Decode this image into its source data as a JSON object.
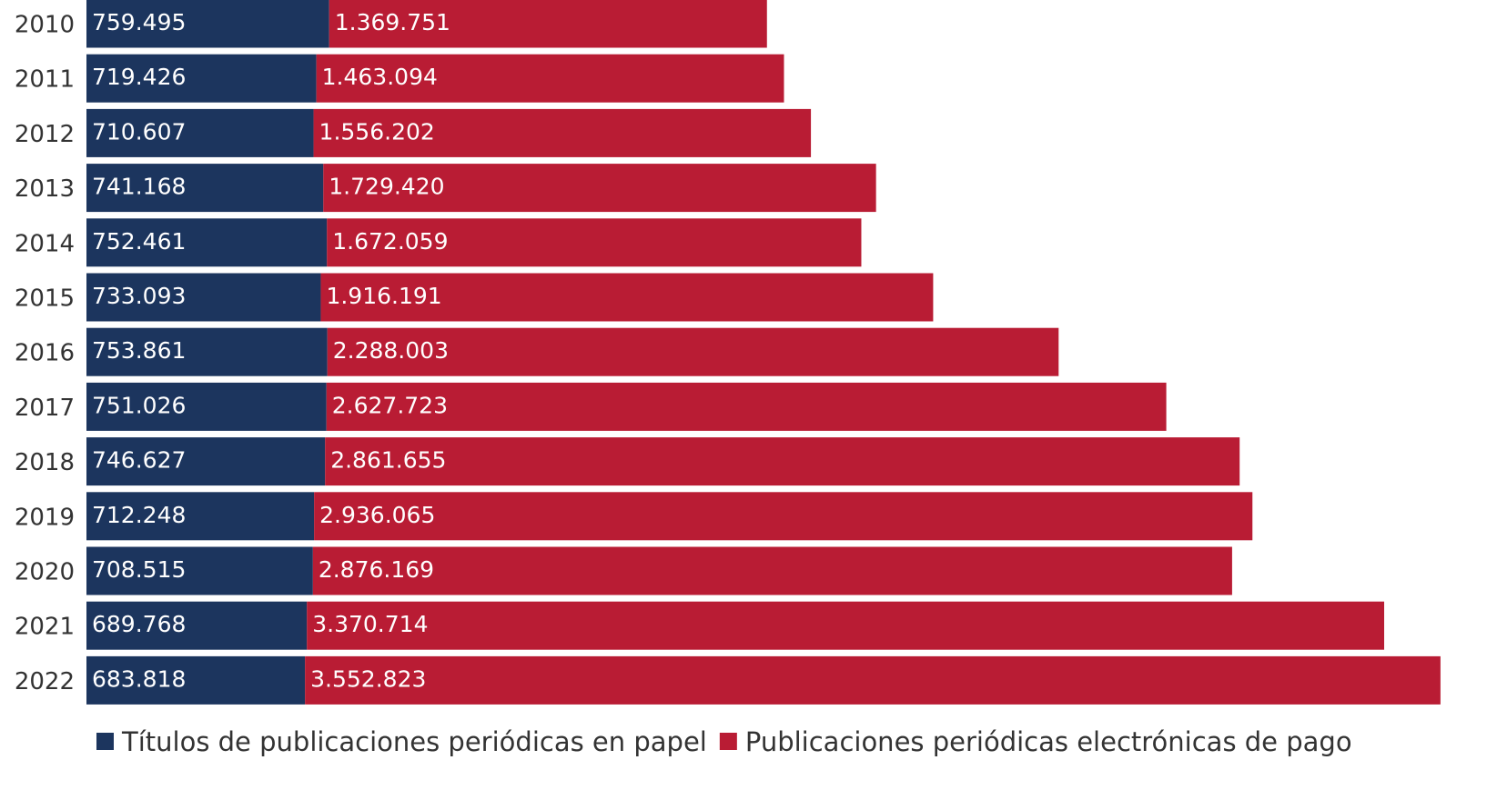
{
  "chart_data": {
    "type": "stacked-bar-horizontal",
    "categories": [
      "2010",
      "2011",
      "2012",
      "2013",
      "2014",
      "2015",
      "2016",
      "2017",
      "2018",
      "2019",
      "2020",
      "2021",
      "2022"
    ],
    "series": [
      {
        "name": "Títulos de publicaciones periódicas en papel",
        "color": "#1c355e",
        "values": [
          759495,
          719426,
          710607,
          741168,
          752461,
          733093,
          753861,
          751026,
          746627,
          712248,
          708515,
          689768,
          683818
        ],
        "value_labels": [
          "759.495",
          "719.426",
          "710.607",
          "741.168",
          "752.461",
          "733.093",
          "753.861",
          "751.026",
          "746.627",
          "712.248",
          "708.515",
          "689.768",
          "683.818"
        ]
      },
      {
        "name": "Publicaciones periódicas electrónicas de pago",
        "color": "#b91c34",
        "values": [
          1369751,
          1463094,
          1556202,
          1729420,
          1672059,
          1916191,
          2288003,
          2627723,
          2861655,
          2936065,
          2876169,
          3370714,
          3552823
        ],
        "value_labels": [
          "1.369.751",
          "1.463.094",
          "1.556.202",
          "1.729.420",
          "1.672.059",
          "1.916.191",
          "2.288.003",
          "2.627.723",
          "2.861.655",
          "2.936.065",
          "2.876.169",
          "3.370.714",
          "3.552.823"
        ]
      }
    ],
    "xlim": [
      0,
      4200000
    ],
    "legend": "bottom"
  }
}
